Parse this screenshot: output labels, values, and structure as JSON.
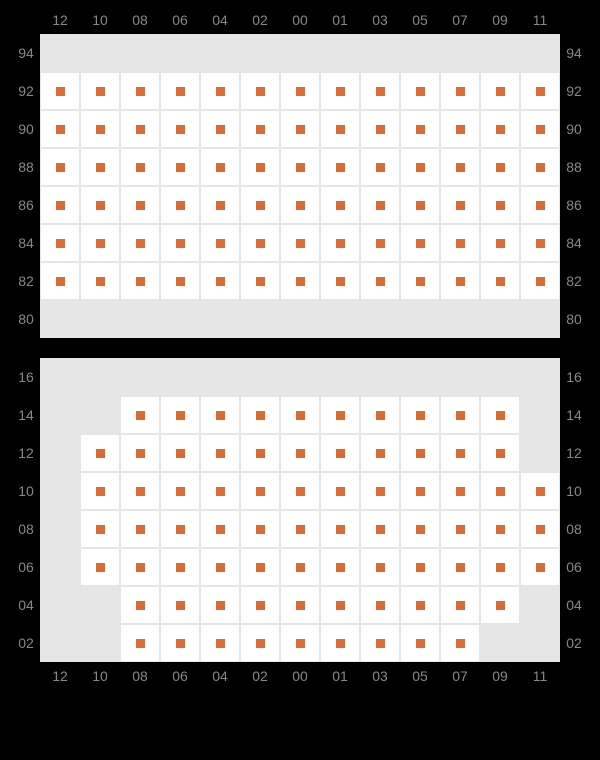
{
  "seat_marker_color": "#d96b36",
  "gray_color": "#e6e6e6",
  "white_color": "#ffffff",
  "border_color": "#e5e5e5",
  "label_color": "#888888",
  "label_fontsize": 14,
  "column_labels": [
    "12",
    "10",
    "08",
    "06",
    "04",
    "02",
    "00",
    "01",
    "03",
    "05",
    "07",
    "09",
    "11"
  ],
  "block1": {
    "col_labels_top": true,
    "col_labels_bottom": false,
    "row_labels": [
      "94",
      "92",
      "90",
      "88",
      "86",
      "84",
      "82",
      "80"
    ],
    "cells": [
      [
        "g",
        "g",
        "g",
        "g",
        "g",
        "g",
        "g",
        "g",
        "g",
        "g",
        "g",
        "g",
        "g"
      ],
      [
        "s",
        "s",
        "s",
        "s",
        "s",
        "s",
        "s",
        "s",
        "s",
        "s",
        "s",
        "s",
        "s"
      ],
      [
        "s",
        "s",
        "s",
        "s",
        "s",
        "s",
        "s",
        "s",
        "s",
        "s",
        "s",
        "s",
        "s"
      ],
      [
        "s",
        "s",
        "s",
        "s",
        "s",
        "s",
        "s",
        "s",
        "s",
        "s",
        "s",
        "s",
        "s"
      ],
      [
        "s",
        "s",
        "s",
        "s",
        "s",
        "s",
        "s",
        "s",
        "s",
        "s",
        "s",
        "s",
        "s"
      ],
      [
        "s",
        "s",
        "s",
        "s",
        "s",
        "s",
        "s",
        "s",
        "s",
        "s",
        "s",
        "s",
        "s"
      ],
      [
        "s",
        "s",
        "s",
        "s",
        "s",
        "s",
        "s",
        "s",
        "s",
        "s",
        "s",
        "s",
        "s"
      ],
      [
        "g",
        "g",
        "g",
        "g",
        "g",
        "g",
        "g",
        "g",
        "g",
        "g",
        "g",
        "g",
        "g"
      ]
    ]
  },
  "block2": {
    "col_labels_top": false,
    "col_labels_bottom": true,
    "row_labels": [
      "16",
      "14",
      "12",
      "10",
      "08",
      "06",
      "04",
      "02"
    ],
    "cells": [
      [
        "g",
        "g",
        "g",
        "g",
        "g",
        "g",
        "g",
        "g",
        "g",
        "g",
        "g",
        "g",
        "g"
      ],
      [
        "g",
        "g",
        "s",
        "s",
        "s",
        "s",
        "s",
        "s",
        "s",
        "s",
        "s",
        "s",
        "g"
      ],
      [
        "g",
        "s",
        "s",
        "s",
        "s",
        "s",
        "s",
        "s",
        "s",
        "s",
        "s",
        "s",
        "g"
      ],
      [
        "g",
        "s",
        "s",
        "s",
        "s",
        "s",
        "s",
        "s",
        "s",
        "s",
        "s",
        "s",
        "s"
      ],
      [
        "g",
        "s",
        "s",
        "s",
        "s",
        "s",
        "s",
        "s",
        "s",
        "s",
        "s",
        "s",
        "s"
      ],
      [
        "g",
        "s",
        "s",
        "s",
        "s",
        "s",
        "s",
        "s",
        "s",
        "s",
        "s",
        "s",
        "s"
      ],
      [
        "g",
        "g",
        "s",
        "s",
        "s",
        "s",
        "s",
        "s",
        "s",
        "s",
        "s",
        "s",
        "g"
      ],
      [
        "g",
        "g",
        "s",
        "s",
        "s",
        "s",
        "s",
        "s",
        "s",
        "s",
        "s",
        "g",
        "g"
      ]
    ]
  }
}
